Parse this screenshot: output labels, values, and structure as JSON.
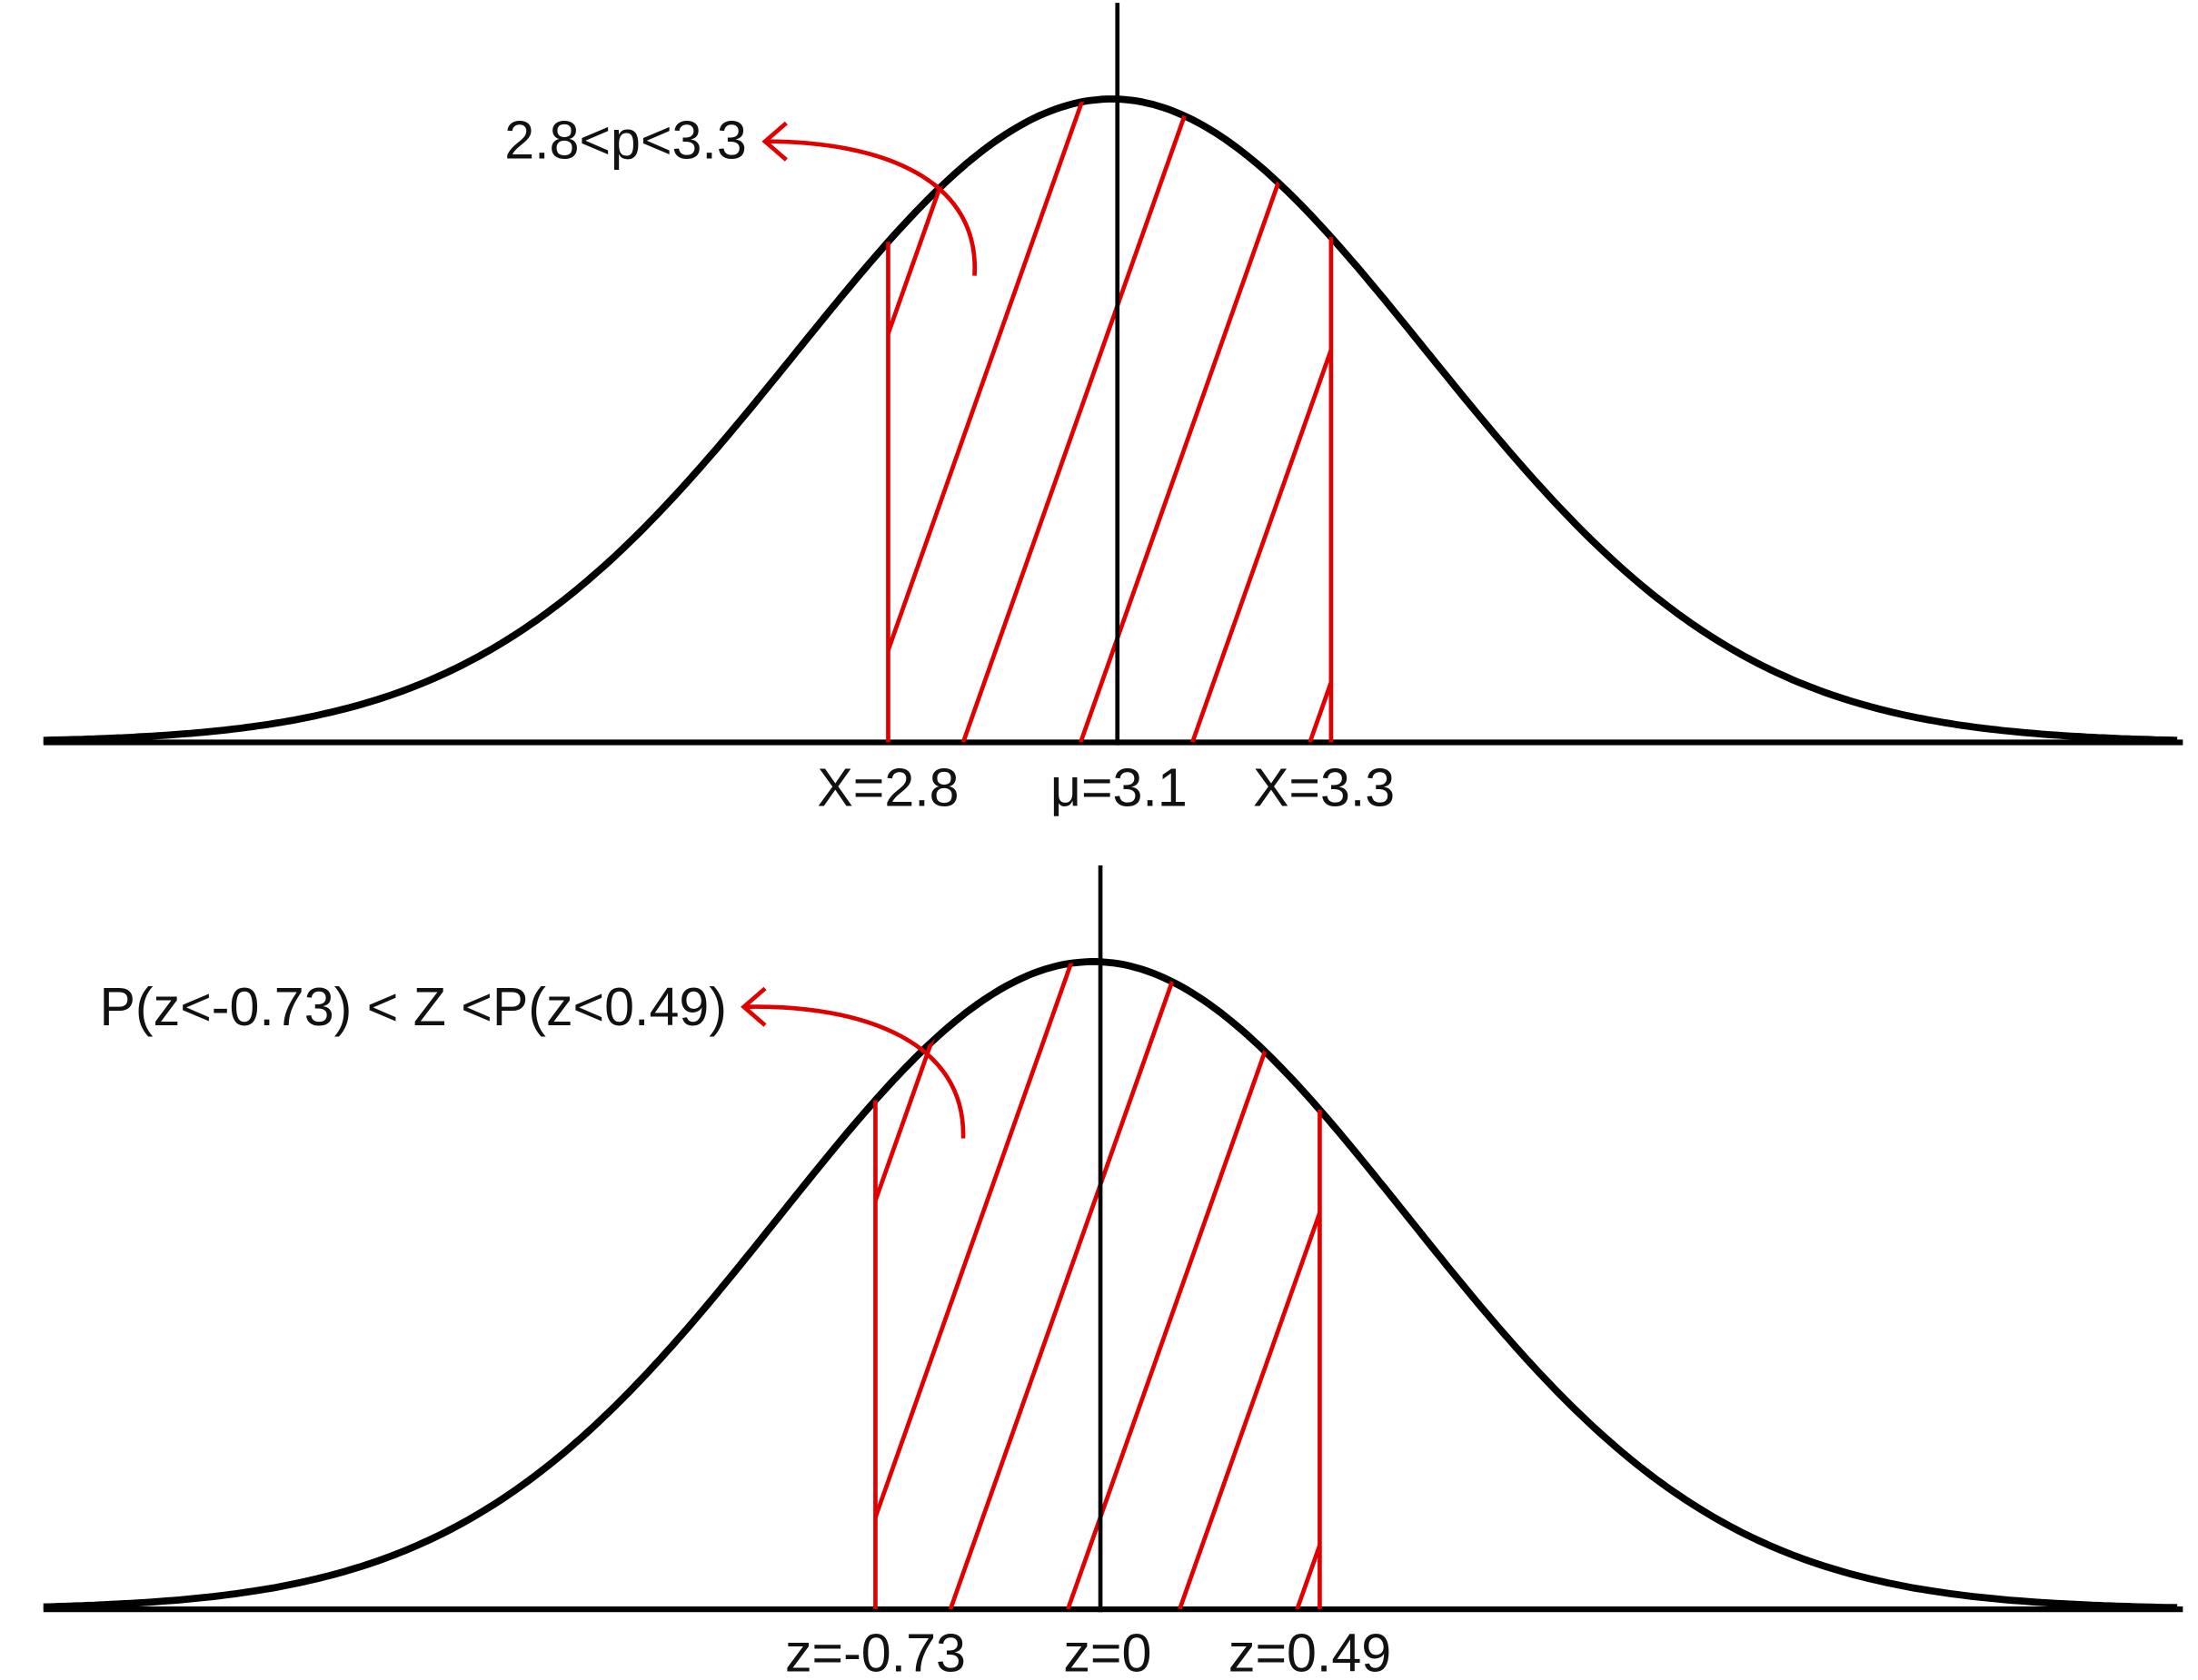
{
  "panels": [
    {
      "annotation": "2.8<p<3.3",
      "labels": [
        "X=2.8",
        "μ=3.1",
        "X=3.3"
      ]
    },
    {
      "annotation": "P(z<-0.73) < Z <P(z<0.49)",
      "labels": [
        "z=-0.73",
        "z=0",
        "z=0.49"
      ]
    }
  ]
}
